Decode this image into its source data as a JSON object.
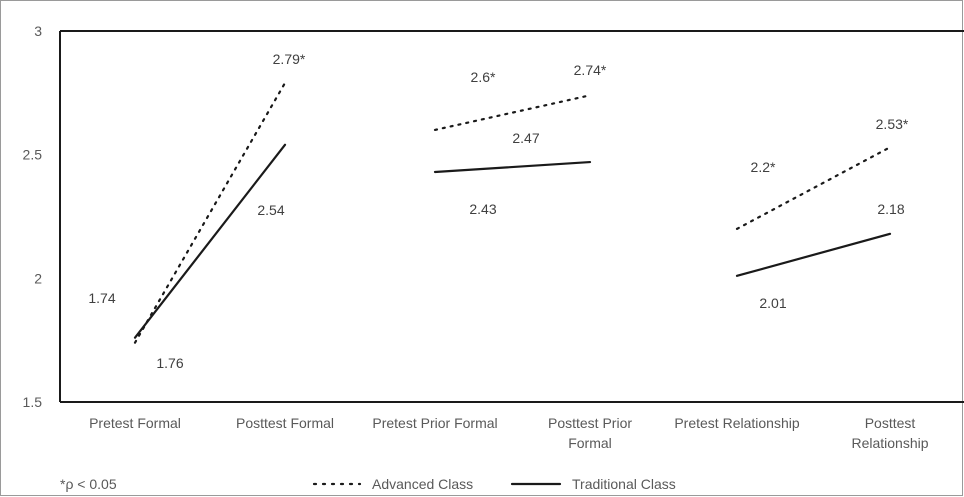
{
  "chart_data": {
    "type": "line",
    "y_ticks": [
      "3",
      "2.5",
      "2",
      "1.5"
    ],
    "ylim": [
      1.5,
      3
    ],
    "grid": false,
    "legend_position": "bottom",
    "footnote": "*ρ < 0.05",
    "groups": [
      {
        "categories": [
          [
            "Pretest Formal"
          ],
          [
            "Posttest Formal"
          ]
        ],
        "series": [
          {
            "name": "Advanced Class",
            "style": "dotted",
            "values": [
              1.74,
              2.79
            ],
            "labels": [
              "1.74",
              "2.79*"
            ]
          },
          {
            "name": "Traditional Class",
            "style": "solid",
            "values": [
              1.76,
              2.54
            ],
            "labels": [
              "1.76",
              "2.54"
            ]
          }
        ]
      },
      {
        "categories": [
          [
            "Pretest Prior Formal"
          ],
          [
            "Posttest Prior",
            "Formal"
          ]
        ],
        "series": [
          {
            "name": "Advanced Class",
            "style": "dotted",
            "values": [
              2.6,
              2.74
            ],
            "labels": [
              "2.6*",
              "2.74*"
            ]
          },
          {
            "name": "Traditional Class",
            "style": "solid",
            "values": [
              2.43,
              2.47
            ],
            "labels": [
              "2.43",
              "2.47"
            ]
          }
        ]
      },
      {
        "categories": [
          [
            "Pretest Relationship"
          ],
          [
            "Posttest",
            "Relationship"
          ]
        ],
        "series": [
          {
            "name": "Advanced Class",
            "style": "dotted",
            "values": [
              2.2,
              2.53
            ],
            "labels": [
              "2.2*",
              "2.53*"
            ]
          },
          {
            "name": "Traditional Class",
            "style": "solid",
            "values": [
              2.01,
              2.18
            ],
            "labels": [
              "2.01",
              "2.18"
            ]
          }
        ]
      }
    ],
    "legend": [
      {
        "name": "Advanced Class",
        "style": "dotted"
      },
      {
        "name": "Traditional Class",
        "style": "solid"
      }
    ],
    "colors": {
      "line": "#1a1a1a",
      "axis": "#1a1a1a",
      "text": "#595959"
    }
  }
}
